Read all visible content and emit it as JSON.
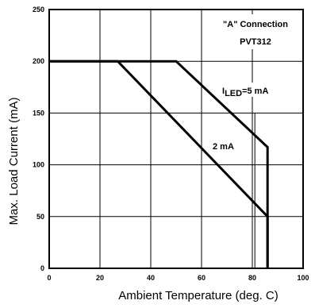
{
  "chart_data": {
    "type": "line",
    "title": "",
    "xlabel": "Ambient Temperature (deg. C)",
    "ylabel": "Max. Load Current (mA)",
    "xlim": [
      0,
      100
    ],
    "ylim": [
      0,
      250
    ],
    "x_ticks": [
      "0",
      "20",
      "40",
      "60",
      "80",
      "100"
    ],
    "y_ticks": [
      "0",
      "50",
      "100",
      "150",
      "200",
      "250"
    ],
    "x_tick_values": [
      0,
      20,
      40,
      60,
      80,
      100
    ],
    "y_tick_values": [
      0,
      50,
      100,
      150,
      200,
      250
    ],
    "grid": true,
    "series": [
      {
        "name": "I_LED=5 mA",
        "points": [
          [
            0,
            200
          ],
          [
            50,
            200
          ],
          [
            86,
            117
          ],
          [
            86,
            0
          ]
        ]
      },
      {
        "name": "2 mA",
        "points": [
          [
            0,
            200
          ],
          [
            27,
            200
          ],
          [
            86,
            50
          ],
          [
            86,
            0
          ]
        ]
      }
    ],
    "extra_lines": [
      {
        "points": [
          [
            81,
            0
          ],
          [
            81,
            150
          ]
        ]
      }
    ],
    "annotations": {
      "box_line1": "\"A\" Connection",
      "box_line2": "PVT312",
      "label_5ma_prefix": "I",
      "label_5ma_sub": "LED",
      "label_5ma_rest": "=5 mA",
      "label_2ma": "2 mA"
    }
  }
}
